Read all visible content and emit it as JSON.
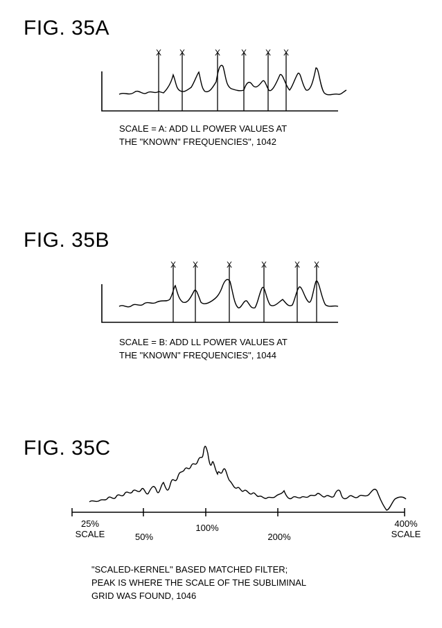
{
  "fig_a": {
    "title": "FIG. 35A",
    "caption": [
      "SCALE = A: ADD LL POWER VALUES AT",
      "THE \"KNOWN\" FREQUENCIES\", 1042"
    ],
    "marker": "X"
  },
  "fig_b": {
    "title": "FIG. 35B",
    "caption": [
      "SCALE = B: ADD LL POWER VALUES AT",
      "THE \"KNOWN\" FREQUENCIES\", 1044"
    ],
    "marker": "X"
  },
  "fig_c": {
    "title": "FIG. 35C",
    "tick_labels": {
      "t25": [
        "25%",
        "SCALE"
      ],
      "t50": "50%",
      "t100": "100%",
      "t200": "200%",
      "t400": [
        "400%",
        "SCALE"
      ]
    },
    "caption": [
      "\"SCALED-KERNEL\" BASED MATCHED FILTER;",
      "PEAK IS WHERE THE SCALE OF THE SUBLIMINAL",
      "GRID WAS FOUND, 1046"
    ]
  }
}
